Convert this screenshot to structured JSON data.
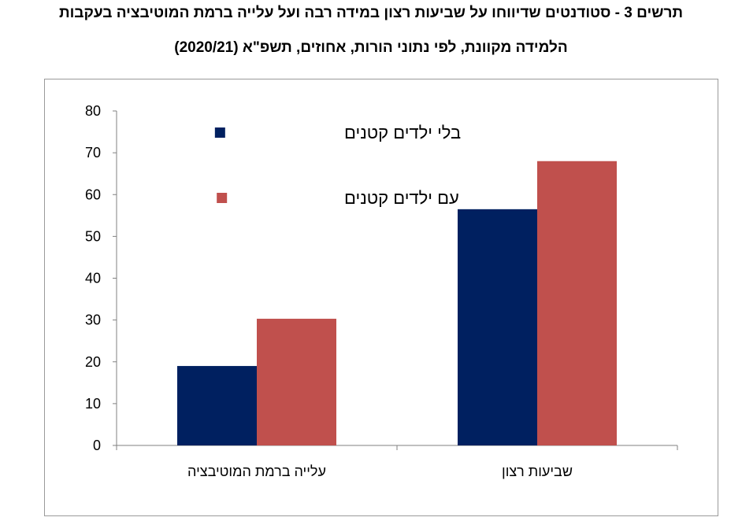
{
  "title": {
    "line1": "תרשים 3 - סטודנטים שדיווחו על שביעות רצון במידה רבה ועל עלייה ברמת המוטיבציה בעקבות",
    "line2": "הלמידה מקוונת, לפי נתוני הורות, אחוזים, תשפ\"א (2020/21)"
  },
  "chart_data": {
    "type": "bar",
    "categories": [
      "עלייה ברמת המוטיבציה",
      "שביעות רצון"
    ],
    "series": [
      {
        "name": "בלי ילדים קטנים",
        "values": [
          19,
          56.5
        ],
        "color": "#002060"
      },
      {
        "name": "עם ילדים קטנים",
        "values": [
          30.3,
          68
        ],
        "color": "#C0504D"
      }
    ],
    "ylim": [
      0,
      80
    ],
    "yticks": [
      "0",
      "10",
      "20",
      "30",
      "40",
      "50",
      "60",
      "70",
      "80"
    ],
    "xlabel": "",
    "ylabel": "",
    "grid": false,
    "legend_position": "top-left"
  }
}
